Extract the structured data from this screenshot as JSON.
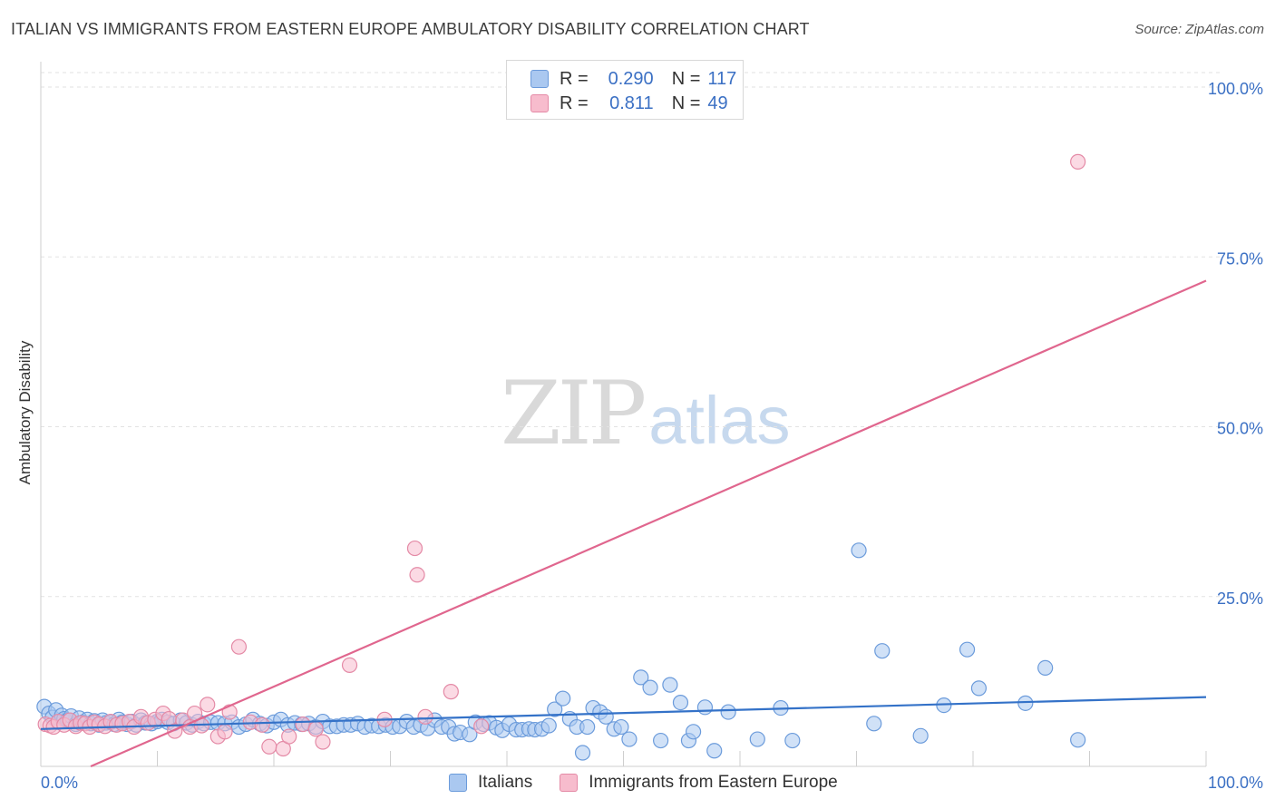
{
  "title": "ITALIAN VS IMMIGRANTS FROM EASTERN EUROPE AMBULATORY DISABILITY CORRELATION CHART",
  "source": "Source: ZipAtlas.com",
  "watermark": {
    "zip": "ZIP",
    "atlas": "atlas"
  },
  "legend": {
    "series1": {
      "r_label": "R =",
      "r_value": "0.290",
      "n_label": "N =",
      "n_value": "117"
    },
    "series2": {
      "r_label": "R =",
      "r_value": "0.811",
      "n_label": "N =",
      "n_value": "49"
    }
  },
  "bottom_legend": {
    "series1": "Italians",
    "series2": "Immigrants from Eastern Europe"
  },
  "colors": {
    "blue_fill": "#aac8f0",
    "blue_stroke": "#6b9bdb",
    "blue_line": "#3472c8",
    "pink_fill": "#f7bccd",
    "pink_stroke": "#e48aa6",
    "pink_line": "#e0668e",
    "tick_text": "#3b70c4",
    "grid": "#e2e2e2"
  },
  "chart_data": {
    "type": "scatter",
    "title": "ITALIAN VS IMMIGRANTS FROM EASTERN EUROPE AMBULATORY DISABILITY CORRELATION CHART",
    "xlabel": "",
    "ylabel": "Ambulatory Disability",
    "xlim": [
      0,
      100
    ],
    "ylim": [
      0,
      100
    ],
    "x_tick_labels": [
      "0.0%",
      "100.0%"
    ],
    "y_ticks": [
      25,
      50,
      75,
      100
    ],
    "y_tick_labels": [
      "25.0%",
      "50.0%",
      "75.0%",
      "100.0%"
    ],
    "series": [
      {
        "name": "Italians",
        "r": 0.29,
        "n": 117,
        "trend": {
          "x": [
            0,
            100
          ],
          "y": [
            5.5,
            10.2
          ]
        },
        "points": [
          [
            0.3,
            8.8
          ],
          [
            0.7,
            7.8
          ],
          [
            1,
            7.2
          ],
          [
            1.3,
            8.3
          ],
          [
            1.5,
            6.5
          ],
          [
            1.8,
            7.5
          ],
          [
            2,
            7
          ],
          [
            2.3,
            6.8
          ],
          [
            2.6,
            7.4
          ],
          [
            3,
            6.2
          ],
          [
            3.3,
            7.1
          ],
          [
            3.6,
            6.5
          ],
          [
            4,
            6.9
          ],
          [
            4.3,
            6.3
          ],
          [
            4.6,
            6.7
          ],
          [
            5,
            6.1
          ],
          [
            5.3,
            6.8
          ],
          [
            5.6,
            6.4
          ],
          [
            6,
            6.5
          ],
          [
            6.3,
            6.2
          ],
          [
            6.7,
            6.9
          ],
          [
            7,
            6.5
          ],
          [
            7.4,
            6.2
          ],
          [
            7.8,
            6.6
          ],
          [
            8.2,
            6.1
          ],
          [
            8.6,
            6.8
          ],
          [
            9,
            6.4
          ],
          [
            9.5,
            6.3
          ],
          [
            10,
            6.6
          ],
          [
            10.4,
            6.9
          ],
          [
            10.9,
            6.5
          ],
          [
            11.4,
            6.3
          ],
          [
            12,
            6.8
          ],
          [
            12.5,
            6.4
          ],
          [
            13,
            6.1
          ],
          [
            13.5,
            6.6
          ],
          [
            14,
            6.3
          ],
          [
            14.6,
            6.5
          ],
          [
            15.2,
            6.4
          ],
          [
            15.8,
            6.3
          ],
          [
            16.4,
            6.5
          ],
          [
            17,
            5.8
          ],
          [
            17.6,
            6.2
          ],
          [
            18.2,
            6.9
          ],
          [
            18.8,
            6.3
          ],
          [
            19.4,
            6
          ],
          [
            20,
            6.5
          ],
          [
            20.6,
            6.9
          ],
          [
            21.2,
            6.1
          ],
          [
            21.8,
            6.4
          ],
          [
            22.4,
            6.2
          ],
          [
            23,
            6.3
          ],
          [
            23.6,
            5.8
          ],
          [
            24.2,
            6.6
          ],
          [
            24.8,
            5.9
          ],
          [
            25.4,
            5.9
          ],
          [
            26,
            6.1
          ],
          [
            26.6,
            6.1
          ],
          [
            27.2,
            6.3
          ],
          [
            27.8,
            5.8
          ],
          [
            28.4,
            6
          ],
          [
            29,
            5.9
          ],
          [
            29.6,
            6.1
          ],
          [
            30.2,
            5.8
          ],
          [
            30.8,
            5.9
          ],
          [
            31.4,
            6.6
          ],
          [
            32,
            5.8
          ],
          [
            32.6,
            6.1
          ],
          [
            33.2,
            5.6
          ],
          [
            33.8,
            6.8
          ],
          [
            34.4,
            5.8
          ],
          [
            35,
            5.8
          ],
          [
            35.5,
            4.8
          ],
          [
            36,
            5
          ],
          [
            36.8,
            4.7
          ],
          [
            37.3,
            6.5
          ],
          [
            38,
            6.2
          ],
          [
            38.5,
            6.4
          ],
          [
            39.1,
            5.7
          ],
          [
            39.6,
            5.3
          ],
          [
            40.2,
            6.2
          ],
          [
            40.8,
            5.4
          ],
          [
            41.3,
            5.4
          ],
          [
            41.9,
            5.5
          ],
          [
            42.4,
            5.4
          ],
          [
            43,
            5.5
          ],
          [
            43.6,
            6
          ],
          [
            44.1,
            8.4
          ],
          [
            44.8,
            10
          ],
          [
            45.4,
            7
          ],
          [
            46,
            5.8
          ],
          [
            46.5,
            2
          ],
          [
            46.9,
            5.8
          ],
          [
            47.4,
            8.6
          ],
          [
            48,
            8
          ],
          [
            48.5,
            7.3
          ],
          [
            49.2,
            5.5
          ],
          [
            49.8,
            5.8
          ],
          [
            50.5,
            4
          ],
          [
            51.5,
            13.1
          ],
          [
            52.3,
            11.6
          ],
          [
            53.2,
            3.8
          ],
          [
            54,
            12
          ],
          [
            54.9,
            9.4
          ],
          [
            55.6,
            3.8
          ],
          [
            56,
            5.1
          ],
          [
            57,
            8.7
          ],
          [
            57.8,
            2.3
          ],
          [
            59,
            8
          ],
          [
            61.5,
            4
          ],
          [
            63.5,
            8.6
          ],
          [
            64.5,
            3.8
          ],
          [
            70.2,
            31.8
          ],
          [
            71.5,
            6.3
          ],
          [
            72.2,
            17
          ],
          [
            75.5,
            4.5
          ],
          [
            77.5,
            9
          ],
          [
            79.5,
            17.2
          ],
          [
            80.5,
            11.5
          ],
          [
            84.5,
            9.3
          ],
          [
            86.2,
            14.5
          ],
          [
            89,
            3.9
          ]
        ]
      },
      {
        "name": "Immigrants from Eastern Europe",
        "r": 0.811,
        "n": 49,
        "trend": {
          "x": [
            0,
            100
          ],
          "y": [
            -3.2,
            71.5
          ]
        },
        "points": [
          [
            0.4,
            6.2
          ],
          [
            0.8,
            6
          ],
          [
            1.1,
            5.8
          ],
          [
            1.5,
            6.6
          ],
          [
            2,
            6.1
          ],
          [
            2.5,
            6.8
          ],
          [
            3,
            5.9
          ],
          [
            3.4,
            6.4
          ],
          [
            3.8,
            6.3
          ],
          [
            4.2,
            5.8
          ],
          [
            4.6,
            6.5
          ],
          [
            5,
            6.2
          ],
          [
            5.5,
            5.9
          ],
          [
            6,
            6.6
          ],
          [
            6.5,
            6.1
          ],
          [
            7,
            6.3
          ],
          [
            7.6,
            6.6
          ],
          [
            8,
            5.8
          ],
          [
            8.6,
            7.3
          ],
          [
            9.2,
            6.4
          ],
          [
            9.8,
            6.9
          ],
          [
            10.5,
            7.8
          ],
          [
            11,
            7
          ],
          [
            11.5,
            5.2
          ],
          [
            12.2,
            6.8
          ],
          [
            12.8,
            5.8
          ],
          [
            13.2,
            7.8
          ],
          [
            13.8,
            6
          ],
          [
            14.3,
            9.1
          ],
          [
            15.2,
            4.4
          ],
          [
            15.8,
            5.1
          ],
          [
            16.2,
            8
          ],
          [
            17,
            17.6
          ],
          [
            18,
            6.5
          ],
          [
            19,
            6.1
          ],
          [
            19.6,
            2.9
          ],
          [
            20.8,
            2.6
          ],
          [
            21.3,
            4.4
          ],
          [
            22.5,
            6.2
          ],
          [
            23.6,
            5.5
          ],
          [
            24.2,
            3.6
          ],
          [
            26.5,
            14.9
          ],
          [
            29.5,
            6.9
          ],
          [
            32.1,
            32.1
          ],
          [
            32.3,
            28.2
          ],
          [
            33,
            7.3
          ],
          [
            35.2,
            11
          ],
          [
            37.8,
            5.9
          ],
          [
            89,
            89
          ]
        ]
      }
    ]
  }
}
